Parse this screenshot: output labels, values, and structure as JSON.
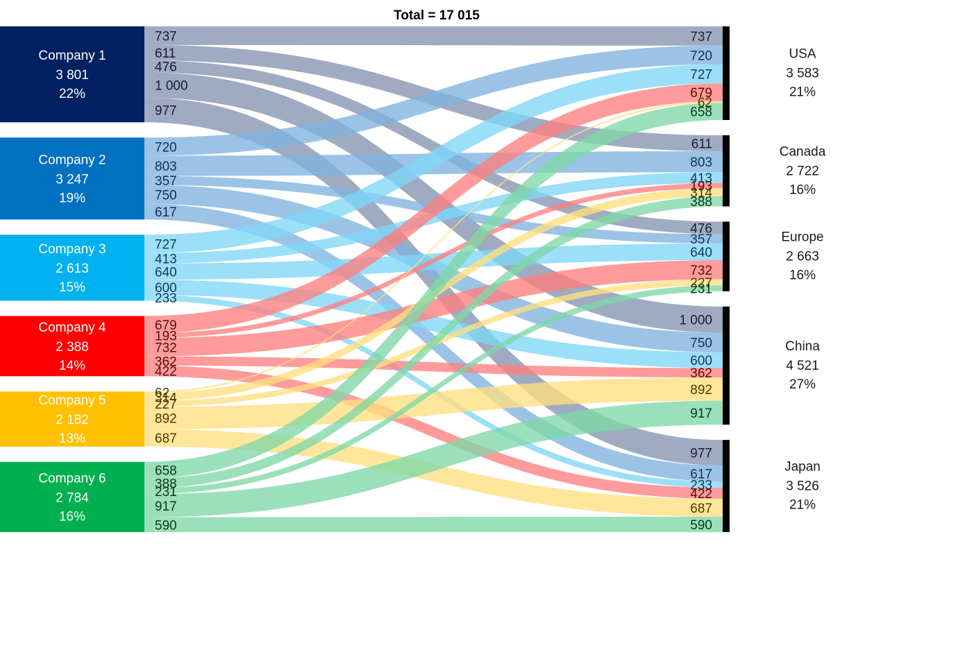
{
  "chart_data": {
    "type": "sankey",
    "title": "Total = 17 015",
    "sources": [
      {
        "name": "Company 1",
        "total": "3 801",
        "pct": "22%",
        "color": "#002060"
      },
      {
        "name": "Company 2",
        "total": "3 247",
        "pct": "19%",
        "color": "#0070C0"
      },
      {
        "name": "Company 3",
        "total": "2 613",
        "pct": "15%",
        "color": "#00B0F0"
      },
      {
        "name": "Company 4",
        "total": "2 388",
        "pct": "14%",
        "color": "#FF0000"
      },
      {
        "name": "Company 5",
        "total": "2 182",
        "pct": "13%",
        "color": "#FFC000"
      },
      {
        "name": "Company 6",
        "total": "2 784",
        "pct": "16%",
        "color": "#00B050"
      }
    ],
    "targets": [
      {
        "name": "USA",
        "total": "3 583",
        "pct": "21%"
      },
      {
        "name": "Canada",
        "total": "2 722",
        "pct": "16%"
      },
      {
        "name": "Europe",
        "total": "2 663",
        "pct": "16%"
      },
      {
        "name": "China",
        "total": "4 521",
        "pct": "27%"
      },
      {
        "name": "Japan",
        "total": "3 526",
        "pct": "21%"
      }
    ],
    "flow_values": [
      [
        737,
        611,
        476,
        1000,
        977
      ],
      [
        720,
        803,
        357,
        750,
        617
      ],
      [
        727,
        413,
        640,
        600,
        233
      ],
      [
        679,
        193,
        732,
        362,
        422
      ],
      [
        62,
        314,
        227,
        892,
        687
      ],
      [
        658,
        388,
        231,
        917,
        590
      ]
    ],
    "flow_labels": [
      [
        "737",
        "611",
        "476",
        "1 000",
        "977"
      ],
      [
        "720",
        "803",
        "357",
        "750",
        "617"
      ],
      [
        "727",
        "413",
        "640",
        "600",
        "233"
      ],
      [
        "679",
        "193",
        "732",
        "362",
        "422"
      ],
      [
        "62",
        "314",
        "227",
        "892",
        "687"
      ],
      [
        "658",
        "388",
        "231",
        "917",
        "590"
      ]
    ],
    "link_colors": [
      "#8493B0",
      "#7FB2DF",
      "#7FD6F7",
      "#FF7F7F",
      "#FFDF7F",
      "#7FD7A7"
    ],
    "label_colors": [
      "#1a1a3a",
      "#10315a",
      "#103a55",
      "#5a0a0a",
      "#4a3a00",
      "#0a3a1a"
    ]
  }
}
